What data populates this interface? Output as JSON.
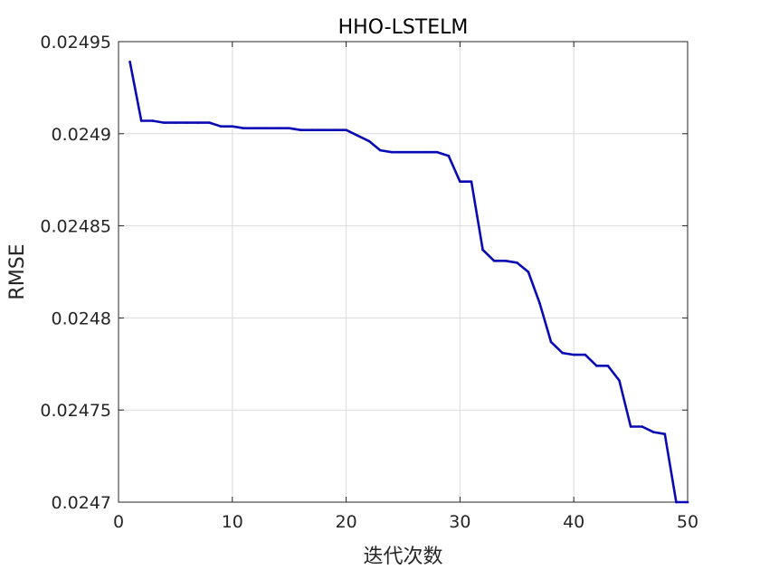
{
  "chart_data": {
    "type": "line",
    "title": "HHO-LSTELM",
    "xlabel": "迭代次数",
    "ylabel": "RMSE",
    "xlim": [
      0,
      50
    ],
    "ylim": [
      0.0247,
      0.02495
    ],
    "grid": true,
    "legend": "none",
    "xticks": [
      0,
      10,
      20,
      30,
      40,
      50
    ],
    "xtick_labels": [
      "0",
      "10",
      "20",
      "30",
      "40",
      "50"
    ],
    "yticks": [
      0.0247,
      0.02475,
      0.0248,
      0.02485,
      0.0249,
      0.02495
    ],
    "ytick_labels": [
      "0.0247",
      "0.02475",
      "0.0248",
      "0.02485",
      "0.0249",
      "0.02495"
    ],
    "colors": {
      "line": "#0a0ab4",
      "grid": "#dcdcdc",
      "axes": "#262626"
    },
    "series": [
      {
        "x": [
          1,
          2,
          3,
          4,
          5,
          6,
          7,
          8,
          9,
          10,
          11,
          12,
          13,
          14,
          15,
          16,
          17,
          18,
          19,
          20,
          21,
          22,
          23,
          24,
          25,
          26,
          27,
          28,
          29,
          30,
          31,
          32,
          33,
          34,
          35,
          36,
          37,
          38,
          39,
          40,
          41,
          42,
          43,
          44,
          45,
          46,
          47,
          48,
          49,
          50
        ],
        "values": [
          0.024939,
          0.024907,
          0.024907,
          0.024906,
          0.024906,
          0.024906,
          0.024906,
          0.024906,
          0.024904,
          0.024904,
          0.024903,
          0.024903,
          0.024903,
          0.024903,
          0.024903,
          0.024902,
          0.024902,
          0.024902,
          0.024902,
          0.024902,
          0.024899,
          0.024896,
          0.024891,
          0.02489,
          0.02489,
          0.02489,
          0.02489,
          0.02489,
          0.024888,
          0.024874,
          0.024874,
          0.024837,
          0.024831,
          0.024831,
          0.02483,
          0.024825,
          0.024808,
          0.024787,
          0.024781,
          0.02478,
          0.02478,
          0.024774,
          0.024774,
          0.024766,
          0.024741,
          0.024741,
          0.024738,
          0.024737,
          0.0247,
          0.0247
        ]
      }
    ]
  }
}
